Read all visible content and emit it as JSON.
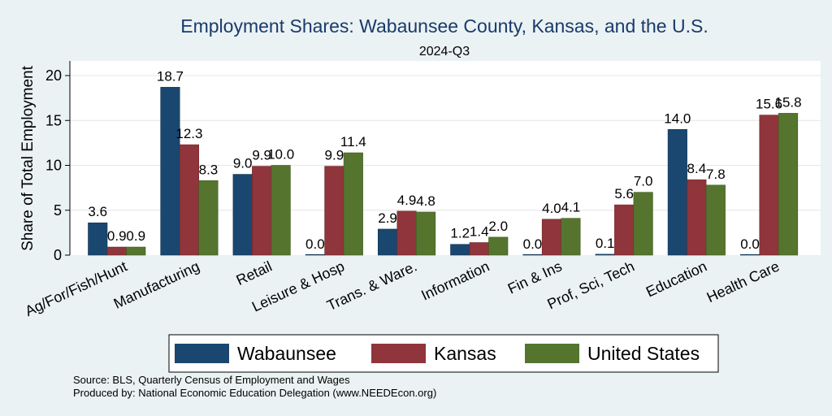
{
  "chart_data": {
    "type": "bar",
    "title": "Employment Shares: Wabaunsee County, Kansas, and the U.S.",
    "subtitle": "2024-Q3",
    "xlabel": "",
    "ylabel": "Share of Total Employment",
    "ylim": [
      0,
      21.5
    ],
    "yticks": [
      0,
      5,
      10,
      15,
      20
    ],
    "grid": true,
    "legend_position": "bottom",
    "categories": [
      "Ag/For/Fish/Hunt",
      "Manufacturing",
      "Retail",
      "Leisure & Hosp",
      "Trans. & Ware.",
      "Information",
      "Fin & Ins",
      "Prof, Sci, Tech",
      "Education",
      "Health Care"
    ],
    "series": [
      {
        "name": "Wabaunsee",
        "color": "#1a476f",
        "values": [
          3.6,
          18.7,
          9.0,
          0.0,
          2.9,
          1.2,
          0.0,
          0.1,
          14.0,
          0.0
        ],
        "labels": [
          "3.6",
          "18.7",
          "9.0",
          "0.0",
          "2.9",
          "1.2",
          "0.0",
          "0.1",
          "14.0",
          "0.0"
        ]
      },
      {
        "name": "Kansas",
        "color": "#90353b",
        "values": [
          0.9,
          12.3,
          9.9,
          9.9,
          4.9,
          1.4,
          4.0,
          5.6,
          8.4,
          15.6
        ],
        "labels": [
          "0.9",
          "12.3",
          "9.9",
          "9.9",
          "4.9",
          "1.4",
          "4.0",
          "5.6",
          "8.4",
          "15.6"
        ]
      },
      {
        "name": "United States",
        "color": "#55752f",
        "values": [
          0.9,
          8.3,
          10.0,
          11.4,
          4.8,
          2.0,
          4.1,
          7.0,
          7.8,
          15.8
        ],
        "labels": [
          "0.9",
          "8.3",
          "10.0",
          "11.4",
          "4.8",
          "2.0",
          "4.1",
          "7.0",
          "7.8",
          "15.8"
        ]
      }
    ]
  },
  "footer": {
    "source": "Source: BLS, Quarterly Census of Employment and Wages",
    "produced": "Produced by: National Economic Education Delegation (www.NEEDEcon.org)"
  }
}
